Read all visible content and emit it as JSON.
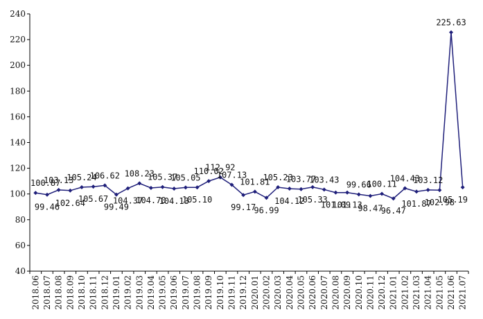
{
  "chart_data": {
    "type": "line",
    "title": "",
    "xlabel": "",
    "ylabel": "",
    "ylim": [
      40,
      240
    ],
    "yticks": [
      40,
      60,
      80,
      100,
      120,
      140,
      160,
      180,
      200,
      220,
      240
    ],
    "grid": false,
    "legend": "none",
    "series_color": "#1f1f7a",
    "categories": [
      "2018.06",
      "2018.07",
      "2018.08",
      "2018.09",
      "2018.10",
      "2018.11",
      "2018.12",
      "2019.01",
      "2019.02",
      "2019.03",
      "2019.04",
      "2019.05",
      "2019.06",
      "2019.07",
      "2019.08",
      "2019.09",
      "2019.10",
      "2019.11",
      "2019.12",
      "2020.01",
      "2020.02",
      "2020.03",
      "2020.04",
      "2020.05",
      "2020.06",
      "2020.07",
      "2020.08",
      "2020.09",
      "2020.10",
      "2020.11",
      "2020.12",
      "2021.01",
      "2021.02",
      "2021.03",
      "2021.04",
      "2021.05",
      "2021.06",
      "2021.07"
    ],
    "series": [
      {
        "values": [
          100.87,
          99.46,
          103.13,
          102.64,
          105.24,
          105.67,
          106.62,
          99.49,
          104.37,
          108.23,
          104.7,
          105.37,
          104.13,
          105.05,
          105.1,
          110.02,
          112.92,
          107.13,
          99.17,
          101.81,
          96.99,
          105.23,
          104.12,
          103.77,
          105.33,
          103.43,
          101.09,
          101.13,
          99.66,
          98.47,
          100.11,
          96.47,
          104.43,
          101.87,
          103.12,
          102.98,
          225.63,
          105.19
        ],
        "labels": [
          "100.87",
          "99.46",
          "103.13",
          "102.64",
          "105.24",
          "105.67",
          "106.62",
          "99.49",
          "104.37",
          "108.23",
          "104.70",
          "105.37",
          "104.13",
          "105.05",
          "105.10",
          "110.02",
          "112.92",
          "107.13",
          "99.17",
          "101.81",
          "96.99",
          "105.23",
          "104.12",
          "103.77",
          "105.33",
          "103.43",
          "101.09",
          "101.13",
          "99.66",
          "98.47",
          "100.11",
          "96.47",
          "104.43",
          "101.87",
          "103.12",
          "102.98",
          "225.63",
          "105.19"
        ],
        "label_pos": [
          "above",
          "below",
          "above",
          "below",
          "above",
          "below",
          "above",
          "below",
          "below",
          "above",
          "below",
          "above",
          "below",
          "above",
          "below",
          "above",
          "above",
          "above",
          "below",
          "above",
          "below",
          "above",
          "below",
          "above",
          "below",
          "above",
          "below",
          "below",
          "above",
          "below",
          "above",
          "below",
          "above",
          "below",
          "above",
          "below",
          "above",
          "below"
        ]
      }
    ]
  }
}
